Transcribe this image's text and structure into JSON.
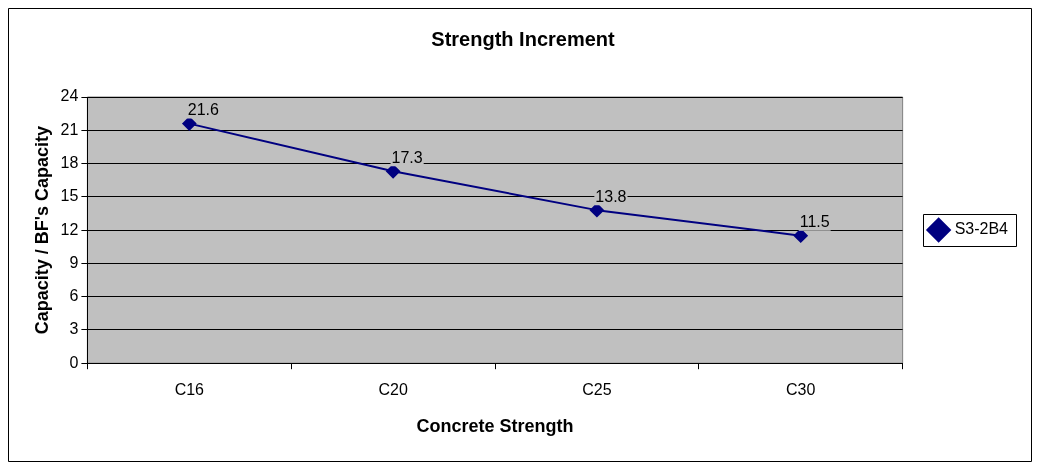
{
  "chart_data": {
    "type": "line",
    "title": "Strength Increment",
    "xlabel": "Concrete Strength",
    "ylabel": "Capacity / BF's Capacity",
    "categories": [
      "C16",
      "C20",
      "C25",
      "C30"
    ],
    "series": [
      {
        "name": "S3-2B4",
        "color": "#000080",
        "values": [
          21.6,
          17.3,
          13.8,
          11.5
        ]
      }
    ],
    "ylim": [
      0,
      24
    ],
    "yticks": [
      0,
      3,
      6,
      9,
      12,
      15,
      18,
      21,
      24
    ],
    "grid": "y",
    "legend": "right",
    "marker": "diamond",
    "line_style": "solid",
    "data_labels": true
  }
}
